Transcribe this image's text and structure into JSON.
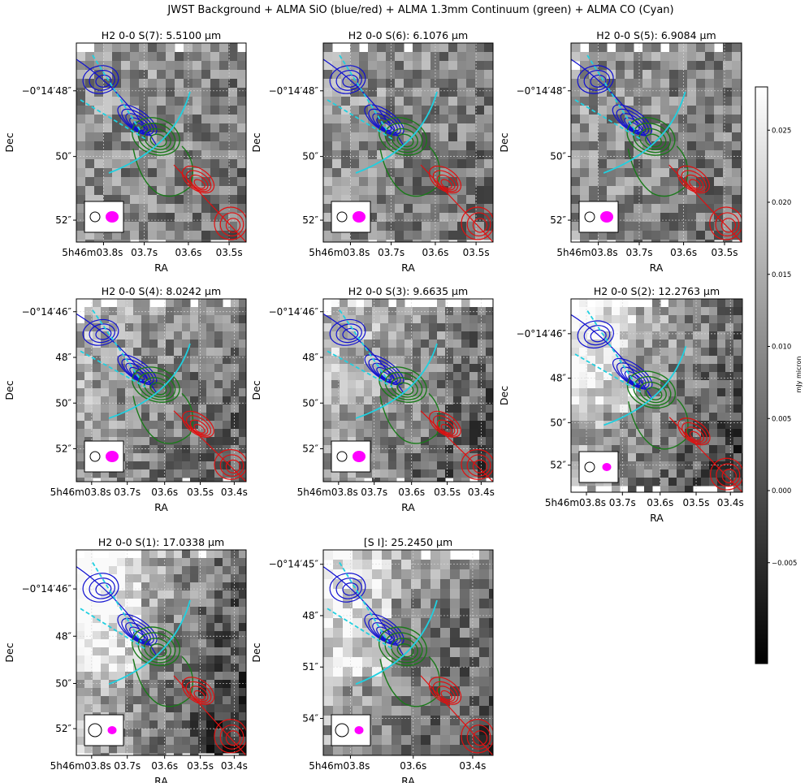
{
  "figure": {
    "suptitle": "JWST Background + ALMA SiO (blue/red) + ALMA 1.3mm Continuum (green) + ALMA CO (Cyan)"
  },
  "colors": {
    "sio_blue": "#1010d0",
    "sio_red": "#e01010",
    "continuum_green": "#1a7a1a",
    "co_cyan": "#20d0e0",
    "beam_alma": "#ff00ff"
  },
  "chart_data": [
    {
      "type": "heatmap",
      "title": "H2 0-0 S(7): 5.5100 µm",
      "xlabel": "RA",
      "ylabel": "Dec",
      "xticks": [
        "5h46m03.8s",
        "03.7s",
        "03.6s",
        "03.5s"
      ],
      "yticks": [
        "−0°14′48″",
        "50″",
        "52″"
      ],
      "grid": true,
      "beams": [
        "JWST PSF",
        "ALMA beam"
      ]
    },
    {
      "type": "heatmap",
      "title": "H2 0-0 S(6): 6.1076 µm",
      "xlabel": "RA",
      "ylabel": "Dec",
      "xticks": [
        "5h46m03.8s",
        "03.7s",
        "03.6s",
        "03.5s"
      ],
      "yticks": [
        "−0°14′48″",
        "50″",
        "52″"
      ],
      "grid": true,
      "beams": [
        "JWST PSF",
        "ALMA beam"
      ]
    },
    {
      "type": "heatmap",
      "title": "H2 0-0 S(5): 6.9084 µm",
      "xlabel": "RA",
      "ylabel": "Dec",
      "xticks": [
        "5h46m03.8s",
        "03.7s",
        "03.6s",
        "03.5s"
      ],
      "yticks": [
        "−0°14′48″",
        "50″",
        "52″"
      ],
      "grid": true,
      "beams": [
        "JWST PSF",
        "ALMA beam"
      ]
    },
    {
      "type": "heatmap",
      "title": "H2 0-0 S(4): 8.0242 µm",
      "xlabel": "RA",
      "ylabel": "Dec",
      "xticks": [
        "5h46m03.8s",
        "03.7s",
        "03.6s",
        "03.5s",
        "03.4s"
      ],
      "yticks": [
        "−0°14′46″",
        "48″",
        "50″",
        "52″"
      ],
      "grid": true,
      "beams": [
        "JWST PSF",
        "ALMA beam"
      ]
    },
    {
      "type": "heatmap",
      "title": "H2 0-0 S(3): 9.6635 µm",
      "xlabel": "RA",
      "ylabel": "Dec",
      "xticks": [
        "5h46m03.8s",
        "03.7s",
        "03.6s",
        "03.5s",
        "03.4s"
      ],
      "yticks": [
        "−0°14′46″",
        "48″",
        "50″",
        "52″"
      ],
      "grid": true,
      "beams": [
        "JWST PSF",
        "ALMA beam"
      ]
    },
    {
      "type": "heatmap",
      "title": "H2 0-0 S(2): 12.2763 µm",
      "xlabel": "RA",
      "ylabel": "Dec",
      "xticks": [
        "5h46m03.8s",
        "03.7s",
        "03.6s",
        "03.5s",
        "03.4s"
      ],
      "yticks": [
        "−0°14′46″",
        "48″",
        "50″",
        "52″"
      ],
      "grid": true,
      "beams": [
        "JWST PSF",
        "ALMA beam"
      ]
    },
    {
      "type": "heatmap",
      "title": "H2 0-0 S(1): 17.0338 µm",
      "xlabel": "RA",
      "ylabel": "Dec",
      "xticks": [
        "5h46m03.8s",
        "03.7s",
        "03.6s",
        "03.5s",
        "03.4s"
      ],
      "yticks": [
        "−0°14′46″",
        "48″",
        "50″",
        "52″"
      ],
      "grid": true,
      "beams": [
        "JWST PSF",
        "ALMA beam"
      ]
    },
    {
      "type": "heatmap",
      "title": "[S I]: 25.2450 µm",
      "xlabel": "RA",
      "ylabel": "Dec",
      "xticks": [
        "5h46m03.8s",
        "03.6s",
        "03.4s"
      ],
      "yticks": [
        "−0°14′45″",
        "48″",
        "51″",
        "54″"
      ],
      "grid": true,
      "beams": [
        "JWST PSF",
        "ALMA beam"
      ]
    }
  ],
  "colorbar": {
    "label": "mJy micron",
    "ticks": [
      "0.025",
      "0.020",
      "0.015",
      "0.010",
      "0.005",
      "0.000",
      "−0.005"
    ],
    "tick_values": [
      0.025,
      0.02,
      0.015,
      0.01,
      0.005,
      0.0,
      -0.005
    ],
    "range": [
      -0.012,
      0.028
    ]
  }
}
